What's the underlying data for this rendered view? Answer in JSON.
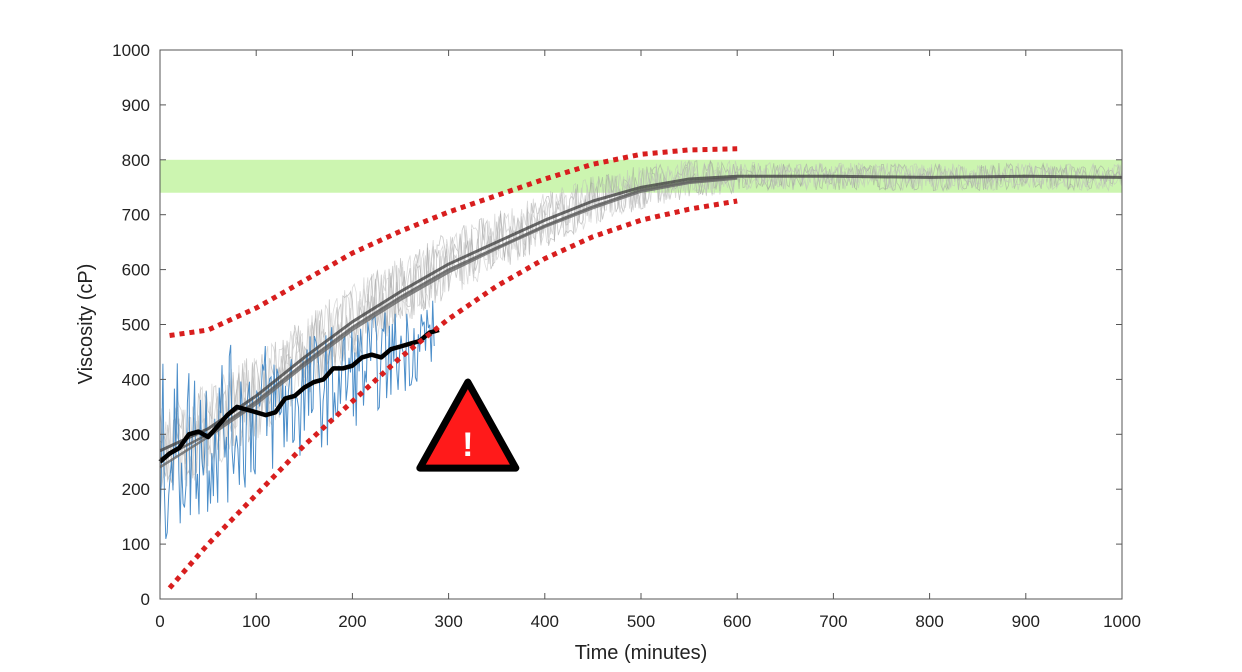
{
  "chart_data": {
    "type": "line",
    "title": "",
    "xlabel": "Time (minutes)",
    "ylabel": "Viscosity (cP)",
    "xlim": [
      0,
      1000
    ],
    "ylim": [
      0,
      1000
    ],
    "xticks": [
      0,
      100,
      200,
      300,
      400,
      500,
      600,
      700,
      800,
      900,
      1000
    ],
    "yticks": [
      0,
      100,
      200,
      300,
      400,
      500,
      600,
      700,
      800,
      900,
      1000
    ],
    "grid": false,
    "legend": "none",
    "target_band": {
      "y_min": 740,
      "y_max": 800,
      "color": "#ccf5b0"
    },
    "envelope": {
      "color": "#d81e1e",
      "upper": {
        "x": [
          10,
          50,
          100,
          150,
          200,
          250,
          300,
          350,
          400,
          450,
          500,
          550,
          600
        ],
        "y": [
          480,
          490,
          530,
          580,
          630,
          670,
          705,
          735,
          765,
          792,
          810,
          818,
          820
        ]
      },
      "lower": {
        "x": [
          10,
          50,
          100,
          150,
          200,
          250,
          300,
          350,
          400,
          450,
          500,
          550,
          600
        ],
        "y": [
          20,
          100,
          190,
          280,
          360,
          440,
          510,
          570,
          620,
          660,
          690,
          710,
          725
        ]
      }
    },
    "series": [
      {
        "color": "#444444",
        "x": [
          0,
          50,
          100,
          150,
          200,
          250,
          300,
          350,
          400,
          450,
          500,
          550,
          600,
          700,
          800,
          900,
          1000
        ],
        "y": [
          270,
          310,
          370,
          440,
          505,
          560,
          610,
          650,
          690,
          725,
          750,
          765,
          770,
          770,
          768,
          770,
          768
        ]
      },
      {
        "color": "#555555",
        "x": [
          0,
          50,
          100,
          150,
          200,
          250,
          300,
          350,
          400,
          450,
          500,
          550,
          600
        ],
        "y": [
          255,
          300,
          360,
          430,
          495,
          550,
          600,
          640,
          680,
          715,
          745,
          760,
          768
        ]
      },
      {
        "color": "#666666",
        "x": [
          0,
          50,
          100,
          150,
          200,
          250,
          300,
          350,
          400,
          450,
          500,
          550,
          600
        ],
        "y": [
          240,
          295,
          355,
          425,
          490,
          545,
          595,
          638,
          678,
          712,
          742,
          758,
          766
        ]
      },
      {
        "color": "#2e7bc1",
        "x": [
          0,
          50,
          100,
          150,
          200,
          250,
          285
        ],
        "y": [
          260,
          300,
          340,
          370,
          410,
          450,
          490
        ]
      },
      {
        "color": "#000000",
        "x": [
          0,
          10,
          20,
          30,
          40,
          50,
          60,
          70,
          80,
          90,
          100,
          110,
          120,
          130,
          140,
          150,
          160,
          170,
          180,
          190,
          200,
          210,
          220,
          230,
          240,
          250,
          260,
          270,
          280,
          290
        ],
        "y": [
          250,
          265,
          275,
          300,
          305,
          295,
          315,
          335,
          350,
          345,
          340,
          335,
          340,
          365,
          370,
          385,
          395,
          400,
          420,
          420,
          425,
          440,
          445,
          440,
          455,
          460,
          465,
          470,
          485,
          490
        ]
      }
    ],
    "annotations": [
      {
        "type": "warning-icon",
        "symbol": "!",
        "x": 320,
        "y": 315,
        "color": "#ff1a1a"
      }
    ]
  }
}
